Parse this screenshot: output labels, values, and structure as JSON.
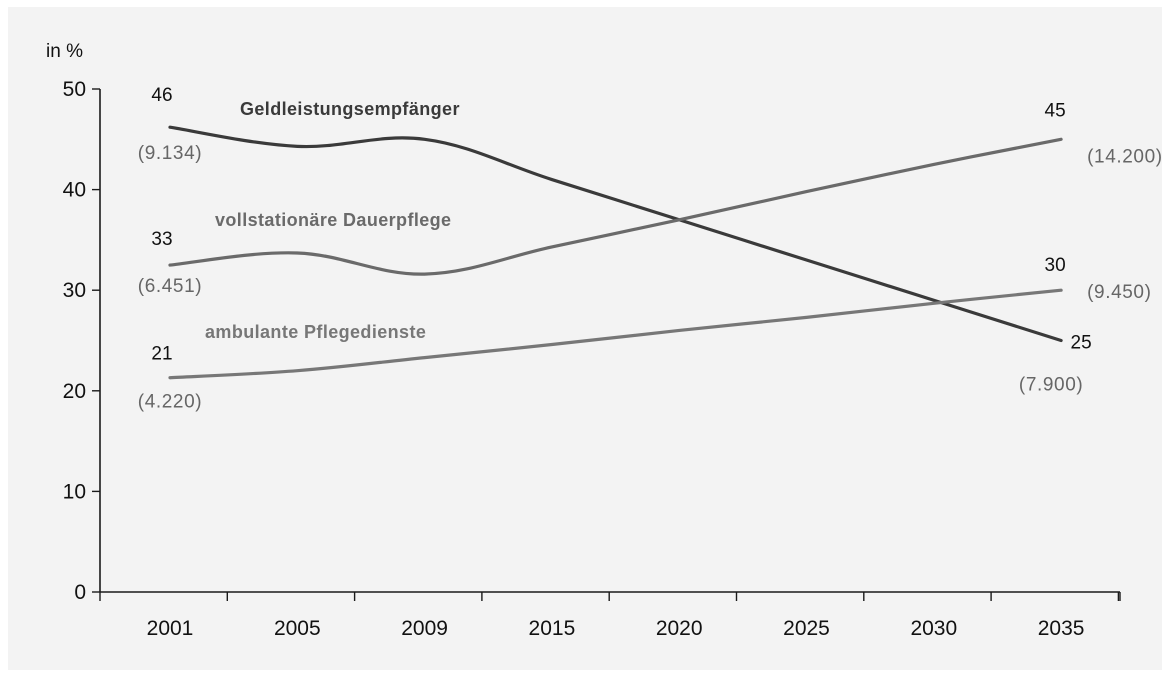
{
  "chart_data": {
    "type": "line",
    "ylabel": "in %",
    "xlabel": "",
    "categories": [
      "2001",
      "2005",
      "2009",
      "2015",
      "2020",
      "2025",
      "2030",
      "2035"
    ],
    "yticks": [
      "0",
      "10",
      "20",
      "30",
      "40",
      "50"
    ],
    "ylim": [
      0,
      50
    ],
    "grid": false,
    "legend": "inline labels",
    "series": [
      {
        "name": "Geldleistungsempfänger",
        "values": [
          46.2,
          44.3,
          45.0,
          41.0,
          37.0,
          33.0,
          29.0,
          25.0
        ],
        "color": "#3a3a3a",
        "start_label": "46",
        "start_abs": "(9.134)",
        "end_label": "25",
        "end_abs": "(7.900)"
      },
      {
        "name": "vollstationäre Dauerpflege",
        "values": [
          32.5,
          33.7,
          31.6,
          34.3,
          37.0,
          39.8,
          42.5,
          45.0
        ],
        "color": "#6a6a6a",
        "start_label": "33",
        "start_abs": "(6.451)",
        "end_label": "45",
        "end_abs": "(14.200)"
      },
      {
        "name": "ambulante Pflegedienste",
        "values": [
          21.3,
          22.0,
          23.3,
          24.6,
          26.0,
          27.3,
          28.7,
          30.0
        ],
        "color": "#777777",
        "start_label": "21",
        "start_abs": "(4.220)",
        "end_label": "30",
        "end_abs": "(9.450)"
      }
    ]
  },
  "colors": {
    "panel_background": "#f3f3f3",
    "axis": "#1a1a1a",
    "absolute_value_text": "#666666"
  }
}
